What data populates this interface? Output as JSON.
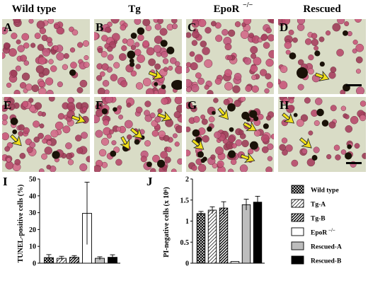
{
  "column_headers": [
    "Wild type",
    "Tg",
    "EpoR",
    "Rescued"
  ],
  "epor_superscript": "−/−",
  "micrograph_panels": [
    "A",
    "B",
    "C",
    "D",
    "E",
    "F",
    "G",
    "H"
  ],
  "chart_data": [
    {
      "panel": "I",
      "type": "bar",
      "ylabel": "TUNEL-positive cells (%)",
      "ylim": [
        0,
        50
      ],
      "yticks": [
        0,
        10,
        20,
        30,
        40,
        50
      ],
      "categories": [
        "Wild type",
        "Tg-A",
        "Tg-B",
        "EpoR −/−",
        "Rescued-A",
        "Rescued-B"
      ],
      "values": [
        3.3,
        2.9,
        3.5,
        29.6,
        2.9,
        3.5
      ],
      "errors": [
        1.8,
        1.2,
        1.0,
        18.5,
        0.9,
        1.5
      ]
    },
    {
      "panel": "J",
      "type": "bar",
      "ylabel": "PI-negative cells (x 10⁶)",
      "ylim": [
        0,
        2
      ],
      "yticks": [
        "0",
        "0.5",
        "1",
        "1.5",
        "2"
      ],
      "categories": [
        "Wild type",
        "Tg-A",
        "Tg-B",
        "EpoR −/−",
        "Rescued-A",
        "Rescued-B"
      ],
      "values": [
        1.18,
        1.26,
        1.31,
        0.04,
        1.39,
        1.45
      ],
      "errors": [
        0.05,
        0.08,
        0.15,
        0.0,
        0.13,
        0.14
      ]
    }
  ],
  "legend": [
    {
      "label": "Wild type",
      "pattern": "crosshatch"
    },
    {
      "label": "Tg-A",
      "pattern": "light-diagonal"
    },
    {
      "label": "Tg-B",
      "pattern": "dense-diagonal"
    },
    {
      "label": "EpoR",
      "sup": "−/−",
      "pattern": "white"
    },
    {
      "label": "Rescued-A",
      "pattern": "gray"
    },
    {
      "label": "Rescued-B",
      "pattern": "black"
    }
  ],
  "colors": {
    "background_tissue": "#d9dcc6",
    "cell_pink": "#c9577a",
    "tunel_black": "#1a1208",
    "arrow_yellow": "#f1e01a",
    "gray_bar": "#bdbdbd"
  }
}
